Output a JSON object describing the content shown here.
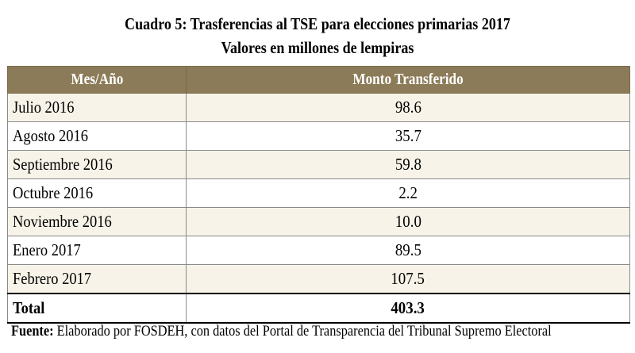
{
  "title": "Cuadro 5: Trasferencias al TSE para elecciones primarias 2017",
  "subtitle": "Valores en millones de lempiras",
  "table": {
    "headers": [
      "Mes/Año",
      "Monto Transferido"
    ],
    "rows": [
      {
        "label": "Julio 2016",
        "value": "98.6"
      },
      {
        "label": "Agosto 2016",
        "value": "35.7"
      },
      {
        "label": "Septiembre 2016",
        "value": "59.8"
      },
      {
        "label": "Octubre 2016",
        "value": "2.2"
      },
      {
        "label": "Noviembre 2016",
        "value": "10.0"
      },
      {
        "label": "Enero 2017",
        "value": "89.5"
      },
      {
        "label": "Febrero 2017",
        "value": "107.5"
      }
    ],
    "total": {
      "label": "Total",
      "value": "403.3"
    }
  },
  "footnote": {
    "label": "Fuente:",
    "text": " Elaborado por FOSDEH, con datos del Portal de Transparencia del Tribunal Supremo Electoral"
  },
  "colors": {
    "header_bg": "#8c7b58",
    "row_shade": "#f7f3e8"
  }
}
